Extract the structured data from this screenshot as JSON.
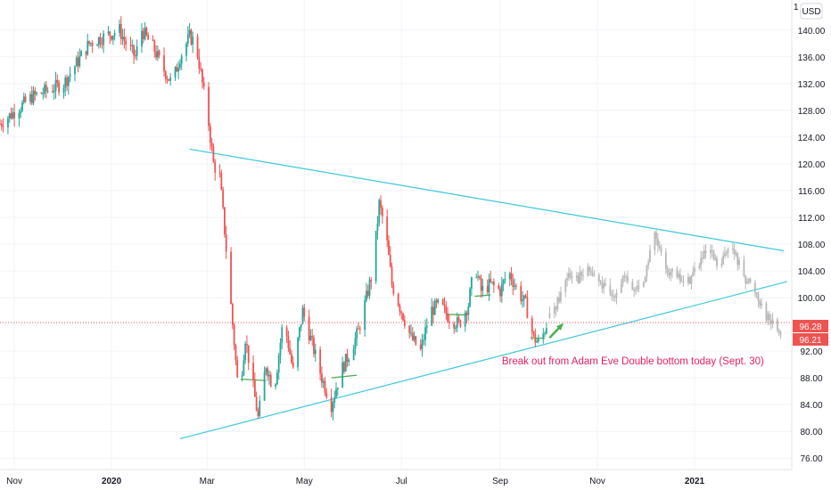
{
  "currency_badge": "USD",
  "top_cut_label": "1",
  "price_labels": {
    "last": "96.28",
    "prev": "96.21"
  },
  "annotation": "Break out from Adam Eve Double bottom today (Sept. 30)",
  "colors": {
    "up": "#26a69a",
    "down": "#ef5350",
    "projection": "#b8b8b8",
    "trendline": "#3cc8dc",
    "annotation": "#e91e63",
    "arrow": "#4caf50",
    "level_marker": "#4caf50",
    "price_tag": "#ef5350"
  },
  "chart_data": {
    "type": "candlestick",
    "x_ticks": [
      {
        "label": "Nov",
        "date": "2019-11-01"
      },
      {
        "label": "2020",
        "date": "2020-01-01"
      },
      {
        "label": "Mar",
        "date": "2020-03-01"
      },
      {
        "label": "May",
        "date": "2020-05-01"
      },
      {
        "label": "Jul",
        "date": "2020-07-01"
      },
      {
        "label": "Sep",
        "date": "2020-09-01"
      },
      {
        "label": "Nov",
        "date": "2020-11-01"
      },
      {
        "label": "2021",
        "date": "2021-01-01"
      }
    ],
    "y_ticks": [
      76,
      80,
      84,
      88,
      92,
      96,
      100,
      104,
      108,
      112,
      116,
      120,
      124,
      128,
      132,
      136,
      140
    ],
    "ylim": [
      74.3,
      144.5
    ],
    "xlim": [
      "2019-10-23",
      "2021-03-03"
    ],
    "grid": true,
    "last_price": 96.28,
    "price_path": [
      [
        "2019-10-23",
        126
      ],
      [
        "2019-11-02",
        128
      ],
      [
        "2019-11-12",
        130
      ],
      [
        "2019-11-22",
        131
      ],
      [
        "2019-12-02",
        132
      ],
      [
        "2019-12-10",
        135
      ],
      [
        "2019-12-18",
        138
      ],
      [
        "2019-12-27",
        139
      ],
      [
        "2020-01-06",
        140
      ],
      [
        "2020-01-10",
        138
      ],
      [
        "2020-01-16",
        136
      ],
      [
        "2020-01-20",
        140
      ],
      [
        "2020-01-28",
        137
      ],
      [
        "2020-02-03",
        134
      ],
      [
        "2020-02-08",
        132
      ],
      [
        "2020-02-13",
        136
      ],
      [
        "2020-02-19",
        139
      ],
      [
        "2020-02-23",
        138
      ],
      [
        "2020-02-27",
        132
      ],
      [
        "2020-03-02",
        126
      ],
      [
        "2020-03-05",
        120
      ],
      [
        "2020-03-09",
        118
      ],
      [
        "2020-03-12",
        110
      ],
      [
        "2020-03-17",
        96
      ],
      [
        "2020-03-21",
        85
      ],
      [
        "2020-03-25",
        94
      ],
      [
        "2020-03-29",
        88
      ],
      [
        "2020-04-02",
        82
      ],
      [
        "2020-04-07",
        90
      ],
      [
        "2020-04-12",
        86
      ],
      [
        "2020-04-18",
        97
      ],
      [
        "2020-04-24",
        89
      ],
      [
        "2020-04-30",
        98
      ],
      [
        "2020-05-06",
        93
      ],
      [
        "2020-05-12",
        88
      ],
      [
        "2020-05-18",
        84
      ],
      [
        "2020-05-24",
        89
      ],
      [
        "2020-05-30",
        92
      ],
      [
        "2020-06-04",
        95
      ],
      [
        "2020-06-09",
        100
      ],
      [
        "2020-06-13",
        104
      ],
      [
        "2020-06-17",
        114
      ],
      [
        "2020-06-21",
        110
      ],
      [
        "2020-06-25",
        102
      ],
      [
        "2020-07-01",
        98
      ],
      [
        "2020-07-07",
        94
      ],
      [
        "2020-07-13",
        92
      ],
      [
        "2020-07-19",
        98
      ],
      [
        "2020-07-25",
        99
      ],
      [
        "2020-07-31",
        97
      ],
      [
        "2020-08-06",
        96
      ],
      [
        "2020-08-12",
        99
      ],
      [
        "2020-08-16",
        105
      ],
      [
        "2020-08-20",
        101
      ],
      [
        "2020-08-26",
        102
      ],
      [
        "2020-09-01",
        101
      ],
      [
        "2020-09-06",
        104
      ],
      [
        "2020-09-12",
        101
      ],
      [
        "2020-09-17",
        99
      ],
      [
        "2020-09-22",
        94
      ],
      [
        "2020-09-26",
        93
      ],
      [
        "2020-09-30",
        96
      ]
    ],
    "projection_path": [
      [
        "2020-10-02",
        97
      ],
      [
        "2020-10-08",
        100
      ],
      [
        "2020-10-14",
        104
      ],
      [
        "2020-10-20",
        103
      ],
      [
        "2020-10-27",
        104
      ],
      [
        "2020-11-03",
        102
      ],
      [
        "2020-11-10",
        100
      ],
      [
        "2020-11-17",
        103
      ],
      [
        "2020-11-24",
        101
      ],
      [
        "2020-12-01",
        103
      ],
      [
        "2020-12-06",
        110
      ],
      [
        "2020-12-11",
        106
      ],
      [
        "2020-12-16",
        104
      ],
      [
        "2020-12-21",
        103
      ],
      [
        "2020-12-27",
        102
      ],
      [
        "2021-01-03",
        105
      ],
      [
        "2021-01-10",
        107
      ],
      [
        "2021-01-17",
        104
      ],
      [
        "2021-01-22",
        108
      ],
      [
        "2021-01-27",
        106
      ],
      [
        "2021-02-02",
        103
      ],
      [
        "2021-02-08",
        101
      ],
      [
        "2021-02-12",
        99
      ],
      [
        "2021-02-16",
        97
      ],
      [
        "2021-02-20",
        96
      ],
      [
        "2021-02-24",
        95
      ]
    ],
    "trendlines": [
      {
        "name": "upper",
        "from": [
          "2020-02-19",
          122.2
        ],
        "to": [
          "2021-02-26",
          107
        ]
      },
      {
        "name": "lower",
        "from": [
          "2020-02-13",
          78.9
        ],
        "to": [
          "2021-02-28",
          102.4
        ]
      }
    ],
    "horizontal_segments": [
      {
        "from": [
          "2020-03-22",
          87.8
        ],
        "to": [
          "2020-04-07",
          87.6
        ]
      },
      {
        "from": [
          "2020-05-18",
          88.0
        ],
        "to": [
          "2020-06-03",
          88.4
        ]
      },
      {
        "from": [
          "2020-07-29",
          97.5
        ],
        "to": [
          "2020-08-11",
          97.4
        ]
      },
      {
        "from": [
          "2020-08-16",
          100.2
        ],
        "to": [
          "2020-08-26",
          100.4
        ]
      },
      {
        "from": [
          "2020-09-20",
          94.0
        ],
        "to": [
          "2020-09-29",
          93.9
        ]
      }
    ],
    "arrow": {
      "from": [
        "2020-10-02",
        94.0
      ],
      "to": [
        "2020-10-10",
        96.0
      ]
    },
    "annotation_anchor": [
      "2020-09-02",
      90.0
    ],
    "price_line_style": "dotted"
  }
}
